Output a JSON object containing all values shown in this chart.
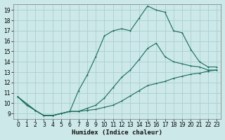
{
  "xlabel": "Humidex (Indice chaleur)",
  "xlim": [
    -0.5,
    23.5
  ],
  "ylim": [
    8.5,
    19.6
  ],
  "xticks": [
    0,
    1,
    2,
    3,
    4,
    5,
    6,
    7,
    8,
    9,
    10,
    11,
    12,
    13,
    14,
    15,
    16,
    17,
    18,
    19,
    20,
    21,
    22,
    23
  ],
  "yticks": [
    9,
    10,
    11,
    12,
    13,
    14,
    15,
    16,
    17,
    18,
    19
  ],
  "bg_color": "#cce8e8",
  "grid_color": "#aacfcf",
  "line_color": "#1a6b5a",
  "line1_x": [
    0,
    1,
    2,
    3,
    4,
    5,
    6,
    7,
    8,
    9,
    10,
    11,
    12,
    13,
    14,
    15,
    16,
    17,
    18,
    19,
    20,
    21,
    22,
    23
  ],
  "line1_y": [
    10.6,
    9.8,
    9.3,
    8.8,
    8.8,
    9.0,
    9.2,
    11.2,
    12.7,
    14.5,
    16.5,
    17.0,
    17.2,
    17.0,
    18.2,
    19.4,
    19.0,
    18.8,
    17.0,
    16.8,
    15.2,
    14.0,
    13.5,
    13.5
  ],
  "line2_x": [
    0,
    2,
    3,
    4,
    5,
    6,
    7,
    8,
    9,
    10,
    11,
    12,
    13,
    14,
    15,
    16,
    17,
    18,
    19,
    20,
    21,
    22,
    23
  ],
  "line2_y": [
    10.6,
    9.3,
    8.8,
    8.8,
    9.0,
    9.2,
    9.2,
    9.5,
    9.8,
    10.5,
    11.5,
    12.5,
    13.2,
    14.2,
    15.3,
    15.8,
    14.5,
    14.0,
    13.8,
    13.6,
    13.5,
    13.2,
    13.2
  ],
  "line3_x": [
    0,
    2,
    3,
    4,
    5,
    6,
    7,
    8,
    9,
    10,
    11,
    12,
    13,
    14,
    15,
    16,
    17,
    18,
    19,
    20,
    21,
    22,
    23
  ],
  "line3_y": [
    10.6,
    9.3,
    8.8,
    8.8,
    9.0,
    9.2,
    9.2,
    9.3,
    9.4,
    9.6,
    9.8,
    10.2,
    10.7,
    11.2,
    11.7,
    11.9,
    12.1,
    12.4,
    12.6,
    12.8,
    12.9,
    13.1,
    13.2
  ]
}
